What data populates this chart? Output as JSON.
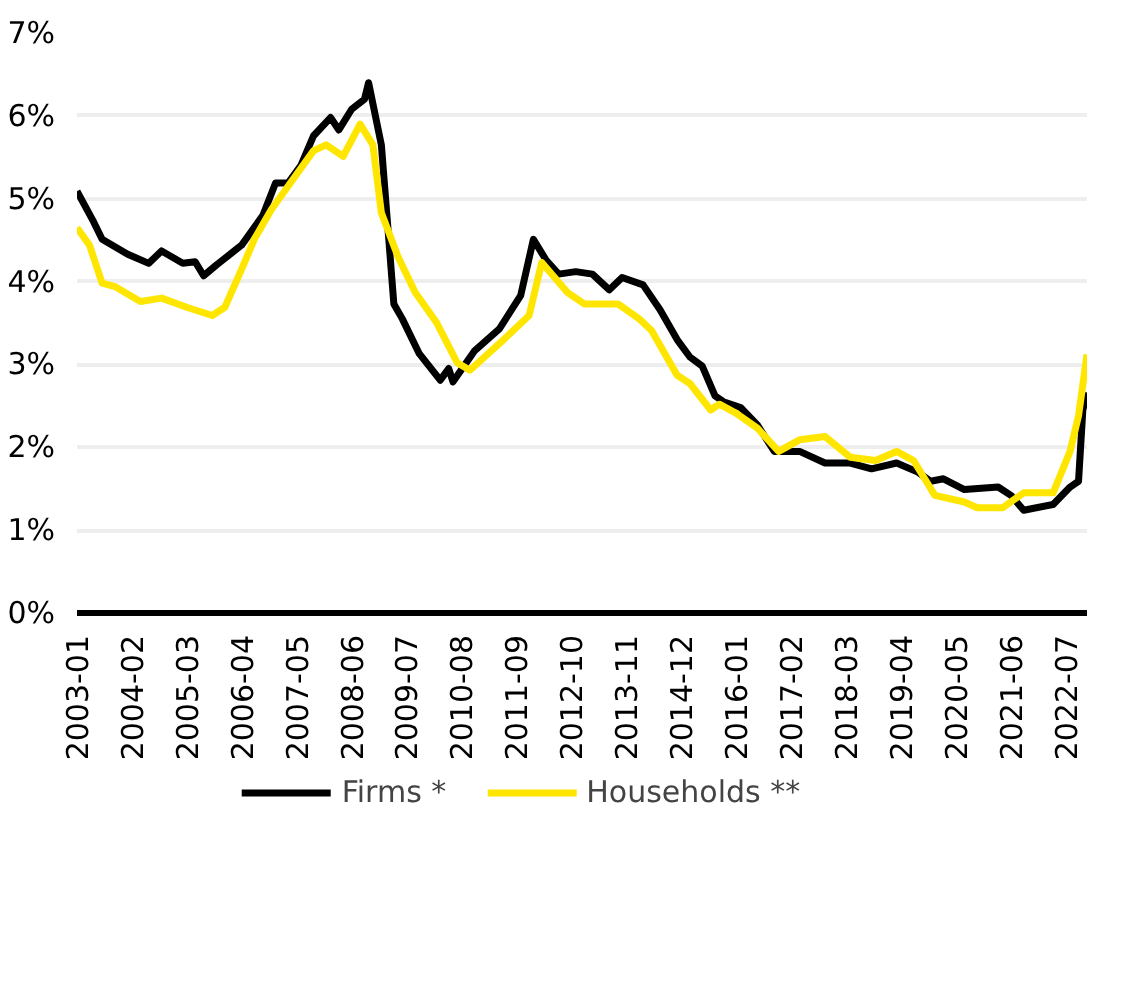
{
  "chart_data": {
    "type": "line",
    "xlim": [
      "2003-01",
      "2022-12"
    ],
    "xticks": [
      "2003-01",
      "2004-02",
      "2005-03",
      "2006-04",
      "2007-05",
      "2008-06",
      "2009-07",
      "2010-08",
      "2011-09",
      "2012-10",
      "2013-11",
      "2014-12",
      "2016-01",
      "2017-02",
      "2018-03",
      "2019-04",
      "2020-05",
      "2021-06",
      "2022-07"
    ],
    "ylim": [
      0,
      7
    ],
    "yticks": [
      {
        "value": 0,
        "label": "0%"
      },
      {
        "value": 1,
        "label": "1%"
      },
      {
        "value": 2,
        "label": "2%"
      },
      {
        "value": 3,
        "label": "3%"
      },
      {
        "value": 4,
        "label": "4%"
      },
      {
        "value": 5,
        "label": "5%"
      },
      {
        "value": 6,
        "label": "6%"
      },
      {
        "value": 7,
        "label": "7%"
      }
    ],
    "grid": "y",
    "legend": "bottom",
    "marker": "none",
    "line_style": "solid",
    "series": [
      {
        "name": "Firms *",
        "color": "#000000",
        "x": [
          "2003-01",
          "2003-05",
          "2003-07",
          "2004-01",
          "2004-06",
          "2004-09",
          "2005-02",
          "2005-05",
          "2005-07",
          "2005-10",
          "2006-04",
          "2006-09",
          "2006-12",
          "2007-03",
          "2007-06",
          "2007-09",
          "2008-01",
          "2008-03",
          "2008-06",
          "2008-09",
          "2008-10",
          "2009-01",
          "2009-04",
          "2009-06",
          "2009-10",
          "2010-03",
          "2010-05",
          "2010-06",
          "2010-11",
          "2011-05",
          "2011-10",
          "2012-01",
          "2012-04",
          "2012-07",
          "2012-11",
          "2013-03",
          "2013-07",
          "2013-10",
          "2014-03",
          "2014-07",
          "2014-11",
          "2015-02",
          "2015-05",
          "2015-08",
          "2015-10",
          "2016-02",
          "2016-06",
          "2016-10",
          "2017-04",
          "2017-10",
          "2018-04",
          "2018-09",
          "2019-03",
          "2019-08",
          "2019-11",
          "2020-02",
          "2020-07",
          "2021-03",
          "2021-06",
          "2021-09",
          "2022-04",
          "2022-08",
          "2022-10",
          "2022-11",
          "2022-12"
        ],
        "values": [
          5.09,
          4.72,
          4.51,
          4.33,
          4.22,
          4.37,
          4.22,
          4.24,
          4.07,
          4.2,
          4.44,
          4.8,
          5.19,
          5.19,
          5.4,
          5.76,
          5.98,
          5.83,
          6.08,
          6.2,
          6.4,
          5.65,
          3.73,
          3.55,
          3.13,
          2.81,
          2.95,
          2.79,
          3.16,
          3.43,
          3.83,
          4.51,
          4.26,
          4.09,
          4.12,
          4.09,
          3.9,
          4.05,
          3.96,
          3.66,
          3.3,
          3.09,
          2.98,
          2.62,
          2.55,
          2.48,
          2.27,
          1.95,
          1.95,
          1.81,
          1.81,
          1.74,
          1.81,
          1.7,
          1.59,
          1.62,
          1.49,
          1.52,
          1.42,
          1.24,
          1.31,
          1.52,
          1.59,
          2.45,
          2.66
        ]
      },
      {
        "name": "Households **",
        "color": "#ffe600",
        "x": [
          "2003-01",
          "2003-04",
          "2003-07",
          "2003-10",
          "2004-04",
          "2004-09",
          "2005-03",
          "2005-09",
          "2005-12",
          "2006-04",
          "2006-07",
          "2006-11",
          "2007-03",
          "2007-09",
          "2007-12",
          "2008-04",
          "2008-08",
          "2008-11",
          "2009-01",
          "2009-05",
          "2009-09",
          "2010-02",
          "2010-07",
          "2010-10",
          "2011-06",
          "2011-12",
          "2012-03",
          "2012-09",
          "2013-01",
          "2013-09",
          "2014-02",
          "2014-05",
          "2014-11",
          "2015-02",
          "2015-07",
          "2015-09",
          "2016-01",
          "2016-06",
          "2016-11",
          "2017-04",
          "2017-10",
          "2018-04",
          "2018-10",
          "2019-03",
          "2019-07",
          "2019-12",
          "2020-07",
          "2020-10",
          "2021-04",
          "2021-09",
          "2022-04",
          "2022-08",
          "2022-10",
          "2022-12"
        ],
        "values": [
          4.65,
          4.44,
          3.98,
          3.94,
          3.76,
          3.8,
          3.69,
          3.59,
          3.69,
          4.15,
          4.51,
          4.87,
          5.15,
          5.58,
          5.65,
          5.51,
          5.9,
          5.65,
          4.83,
          4.3,
          3.87,
          3.51,
          3.02,
          2.93,
          3.3,
          3.59,
          4.23,
          3.87,
          3.73,
          3.73,
          3.55,
          3.41,
          2.87,
          2.77,
          2.45,
          2.52,
          2.41,
          2.23,
          1.95,
          2.09,
          2.13,
          1.88,
          1.84,
          1.95,
          1.84,
          1.42,
          1.34,
          1.27,
          1.27,
          1.45,
          1.45,
          1.95,
          2.38,
          3.12
        ]
      }
    ]
  }
}
